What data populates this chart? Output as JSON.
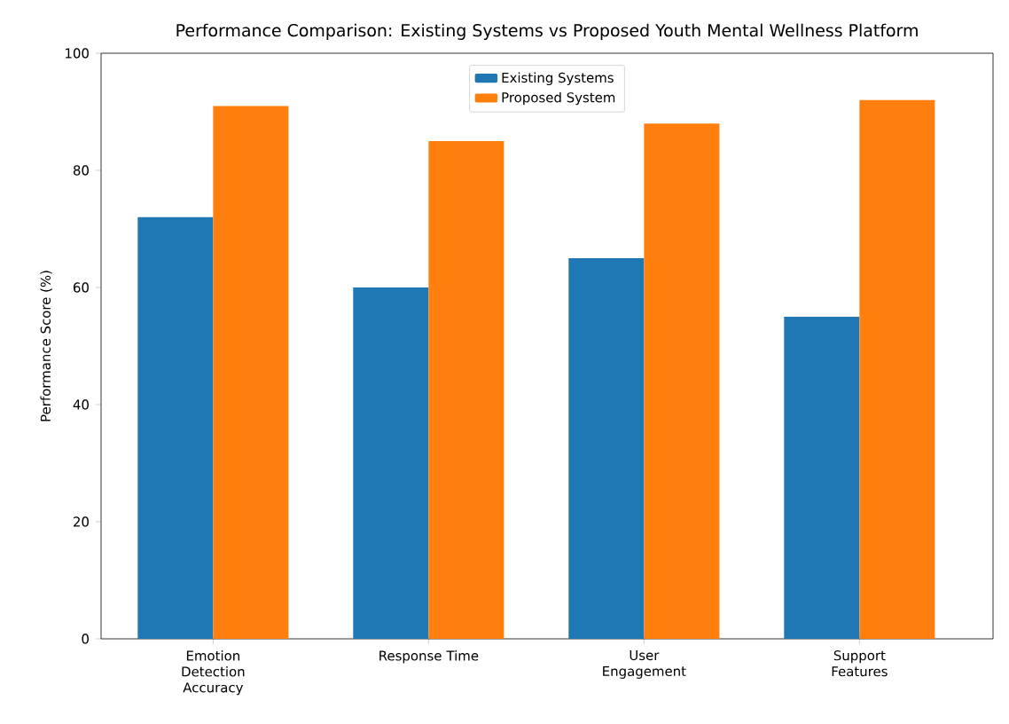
{
  "chart_data": {
    "type": "bar",
    "title": "Performance Comparison: Existing Systems vs Proposed Youth Mental Wellness Platform",
    "ylabel": "Performance Score (%)",
    "categories": [
      "Emotion Detection Accuracy",
      "Response Time",
      "User Engagement",
      "Support Features"
    ],
    "series": [
      {
        "name": "Existing Systems",
        "color": "#1f77b4",
        "values": [
          72,
          60,
          65,
          55
        ]
      },
      {
        "name": "Proposed System",
        "color": "#ff7f0e",
        "values": [
          91,
          85,
          88,
          92
        ]
      }
    ],
    "ylim": [
      0,
      100
    ],
    "yticks": [
      0,
      20,
      40,
      60,
      80,
      100
    ],
    "legend": "top",
    "grid": false
  }
}
